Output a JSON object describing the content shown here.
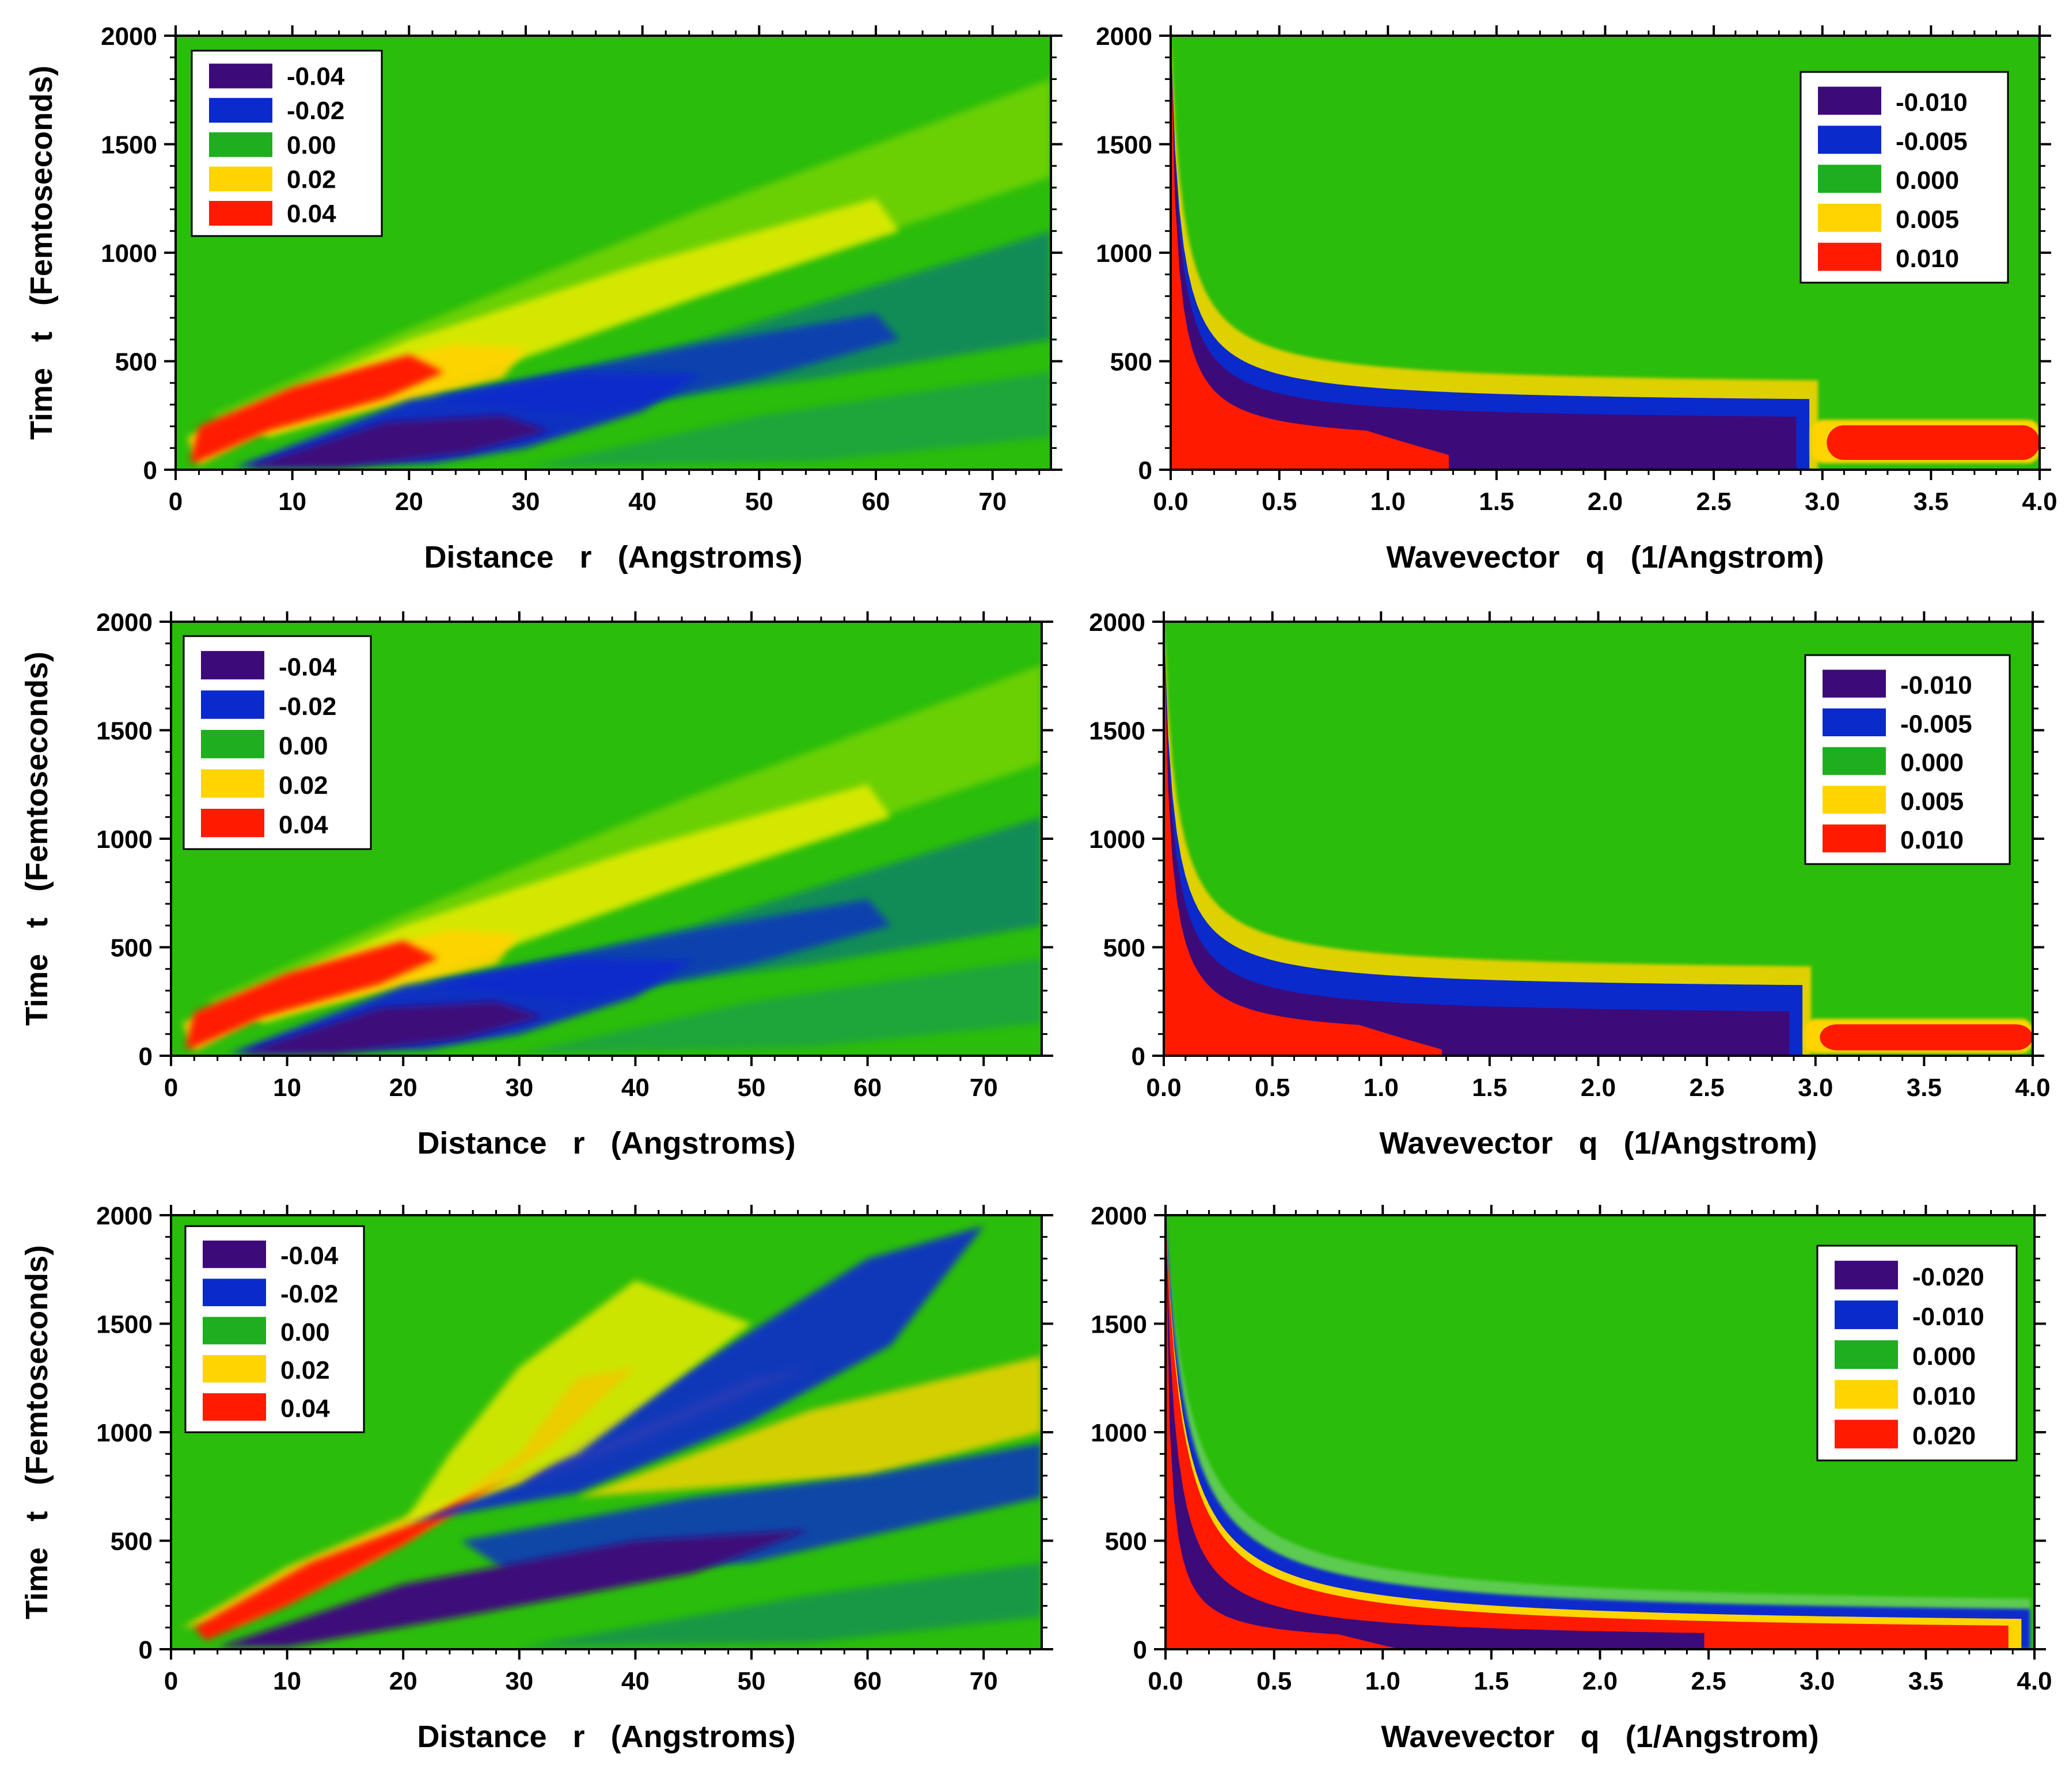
{
  "colors": {
    "dark_purple": "#3d0a7a",
    "blue": "#0a2acc",
    "green": "#1fae1f",
    "background_green": "#2bbd0b",
    "yellow": "#ffd400",
    "red": "#ff1a00"
  },
  "chart_data": [
    {
      "type": "heatmap",
      "panel": "top-left",
      "xlabel": "Distance   r   (Angstroms)",
      "ylabel": "Time   t   (Femtoseconds)",
      "xlim": [
        0,
        75
      ],
      "ylim": [
        0,
        2000
      ],
      "xticks": [
        "0",
        "10",
        "20",
        "30",
        "40",
        "50",
        "60",
        "70"
      ],
      "yticks": [
        "0",
        "500",
        "1000",
        "1500",
        "2000"
      ],
      "legend": [
        "-0.04",
        "-0.02",
        "0.00",
        "0.02",
        "0.04"
      ],
      "legend_position": "top-left",
      "features": [
        {
          "name": "positive lobe",
          "value": 0.04,
          "apex_r": 21,
          "apex_t": 400,
          "spreads_to_r": 75,
          "spreads_to_t": 1700
        },
        {
          "name": "negative lobe",
          "value": -0.04,
          "apex_r": 27,
          "apex_t": 220,
          "spreads_to_r": 75,
          "spreads_to_t": 1000
        }
      ]
    },
    {
      "type": "heatmap",
      "panel": "top-right",
      "xlabel": "Wavevector   q   (1/Angstrom)",
      "ylabel": "",
      "xlim": [
        0,
        4.0
      ],
      "ylim": [
        0,
        2000
      ],
      "xticks": [
        "0.0",
        "0.5",
        "1.0",
        "1.5",
        "2.0",
        "2.5",
        "3.0",
        "3.5",
        "4.0"
      ],
      "yticks": [
        "0",
        "500",
        "1000",
        "1500",
        "2000"
      ],
      "legend": [
        "-0.010",
        "-0.005",
        "0.000",
        "0.005",
        "0.010"
      ],
      "legend_position": "top-right",
      "features": [
        {
          "name": "red band",
          "value": 0.01,
          "q_range": [
            0.0,
            1.3
          ],
          "t_edge_at_q0": 2000,
          "t_edge_at_q1": 250
        },
        {
          "name": "purple band",
          "value": -0.01,
          "q_range": [
            0.0,
            2.9
          ],
          "t_edge_at_q0": 2000,
          "t_edge_at_q2": 300
        },
        {
          "name": "red high-q patch",
          "value": 0.01,
          "q_range": [
            2.95,
            4.0
          ],
          "t_range": [
            30,
            220
          ]
        }
      ]
    },
    {
      "type": "heatmap",
      "panel": "middle-left",
      "xlabel": "Distance   r   (Angstroms)",
      "ylabel": "Time   t   (Femtoseconds)",
      "xlim": [
        0,
        75
      ],
      "ylim": [
        0,
        2000
      ],
      "xticks": [
        "0",
        "10",
        "20",
        "30",
        "40",
        "50",
        "60",
        "70"
      ],
      "yticks": [
        "0",
        "500",
        "1000",
        "1500",
        "2000"
      ],
      "legend": [
        "-0.04",
        "-0.02",
        "0.00",
        "0.02",
        "0.04"
      ],
      "legend_position": "top-left",
      "features": [
        {
          "name": "positive lobe",
          "value": 0.04,
          "apex_r": 20,
          "apex_t": 420,
          "spreads_to_r": 75,
          "spreads_to_t": 1700
        },
        {
          "name": "negative lobe",
          "value": -0.04,
          "apex_r": 23,
          "apex_t": 200,
          "spreads_to_r": 75,
          "spreads_to_t": 1000
        }
      ]
    },
    {
      "type": "heatmap",
      "panel": "middle-right",
      "xlabel": "Wavevector   q   (1/Angstrom)",
      "ylabel": "",
      "xlim": [
        0,
        4.0
      ],
      "ylim": [
        0,
        2000
      ],
      "xticks": [
        "0.0",
        "0.5",
        "1.0",
        "1.5",
        "2.0",
        "2.5",
        "3.0",
        "3.5",
        "4.0"
      ],
      "yticks": [
        "0",
        "500",
        "1000",
        "1500",
        "2000"
      ],
      "legend": [
        "-0.010",
        "-0.005",
        "0.000",
        "0.005",
        "0.010"
      ],
      "legend_position": "top-right",
      "features": [
        {
          "name": "red band",
          "value": 0.01,
          "q_range": [
            0.0,
            1.3
          ],
          "t_edge_at_q0": 2000,
          "t_edge_at_q1": 200
        },
        {
          "name": "purple band",
          "value": -0.01,
          "q_range": [
            0.0,
            2.9
          ],
          "t_edge_at_q0": 2000,
          "t_edge_at_q2": 250
        },
        {
          "name": "red high-q patch",
          "value": 0.01,
          "q_range": [
            2.95,
            4.0
          ],
          "t_range": [
            10,
            160
          ]
        }
      ]
    },
    {
      "type": "heatmap",
      "panel": "bottom-left",
      "xlabel": "Distance   r   (Angstroms)",
      "ylabel": "Time   t   (Femtoseconds)",
      "xlim": [
        0,
        75
      ],
      "ylim": [
        0,
        2000
      ],
      "xticks": [
        "0",
        "10",
        "20",
        "30",
        "40",
        "50",
        "60",
        "70"
      ],
      "yticks": [
        "0",
        "500",
        "1000",
        "1500",
        "2000"
      ],
      "legend": [
        "-0.04",
        "-0.02",
        "0.00",
        "0.02",
        "0.04"
      ],
      "legend_position": "top-left",
      "features": [
        {
          "name": "positive V lobe",
          "value": 0.04,
          "apex_r": 22,
          "apex_t": 600,
          "spreads_to_r": 50,
          "spreads_to_t": 2000
        },
        {
          "name": "negative lobe inner",
          "value": -0.02,
          "apex_r": 40,
          "apex_t": 1000,
          "spreads_to_r": 75,
          "spreads_to_t": 2000
        },
        {
          "name": "positive lobe inner",
          "value": 0.02,
          "apex_r": 45,
          "apex_t": 800,
          "spreads_to_r": 75,
          "spreads_to_t": 1400
        },
        {
          "name": "negative lobe lower",
          "value": -0.04,
          "apex_r": 35,
          "apex_t": 250,
          "spreads_to_r": 75,
          "spreads_to_t": 1000
        }
      ]
    },
    {
      "type": "heatmap",
      "panel": "bottom-right",
      "xlabel": "Wavevector   q   (1/Angstrom)",
      "ylabel": "",
      "xlim": [
        0,
        4.0
      ],
      "ylim": [
        0,
        2000
      ],
      "xticks": [
        "0.0",
        "0.5",
        "1.0",
        "1.5",
        "2.0",
        "2.5",
        "3.0",
        "3.5",
        "4.0"
      ],
      "yticks": [
        "0",
        "500",
        "1000",
        "1500",
        "2000"
      ],
      "legend": [
        "-0.020",
        "-0.010",
        "0.000",
        "0.010",
        "0.020"
      ],
      "legend_position": "top-right",
      "features": [
        {
          "name": "red band inner",
          "value": 0.02,
          "q_range": [
            0.0,
            1.2
          ]
        },
        {
          "name": "purple band",
          "value": -0.02,
          "q_range": [
            0.0,
            2.5
          ]
        },
        {
          "name": "red band outer",
          "value": 0.02,
          "q_range": [
            0.0,
            3.9
          ]
        },
        {
          "name": "blue outer fringe",
          "value": -0.01,
          "q_range": [
            0.0,
            4.0
          ]
        }
      ]
    }
  ]
}
